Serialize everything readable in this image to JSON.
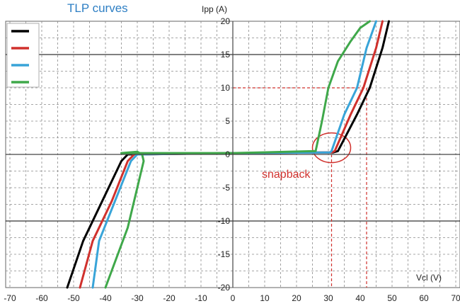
{
  "chart_data": {
    "type": "line",
    "title": "TLP curves",
    "xlabel": "Vcl (V)",
    "ylabel": "Ipp (A)",
    "xlim": [
      -70,
      70
    ],
    "ylim": [
      -20,
      20
    ],
    "x_ticks": [
      -70,
      -60,
      -50,
      -40,
      -30,
      -20,
      -10,
      0,
      10,
      20,
      30,
      40,
      50,
      60,
      70
    ],
    "y_ticks": [
      20,
      15,
      10,
      5,
      0,
      -5,
      -10,
      -15,
      -20
    ],
    "x_tick_labels": [
      "-70",
      "-60",
      "-50",
      "-40",
      "-30",
      "-20",
      "-10",
      "0",
      "10",
      "20",
      "30",
      "40",
      "50",
      "60",
      "70"
    ],
    "y_tick_labels": [
      "20",
      "15",
      "10",
      "5",
      "0",
      "-5",
      "-10",
      "-15",
      "-20"
    ],
    "grid": true,
    "legend": "top-left",
    "colors": {
      "title": "#2e7fc4",
      "grid_dashed": "#8a8a8a",
      "grid_major": "#000000",
      "annotation": "#d0312d"
    },
    "series": [
      {
        "color": "#000000",
        "x": [
          -52,
          -47,
          -41,
          -35,
          -33,
          -32,
          0,
          30,
          31.5,
          33,
          39,
          43,
          47,
          49
        ],
        "y": [
          -20,
          -13,
          -7,
          -1,
          0,
          0,
          0.2,
          0.3,
          0.3,
          0.5,
          6,
          10,
          16,
          20
        ]
      },
      {
        "color": "#d0312d",
        "x": [
          -48,
          -44,
          -38,
          -33,
          -31,
          -30,
          0,
          30,
          31,
          32,
          37,
          41,
          45,
          47
        ],
        "y": [
          -20,
          -13,
          -7,
          -1,
          0,
          0,
          0.2,
          0.3,
          0.3,
          0.5,
          6,
          10,
          16,
          20
        ]
      },
      {
        "color": "#38a4d8",
        "x": [
          -44,
          -42,
          -37,
          -32,
          -30,
          -29,
          0,
          30,
          30.5,
          31,
          35,
          39,
          42,
          45
        ],
        "y": [
          -20,
          -13,
          -7,
          -1,
          0,
          0,
          0.2,
          0.3,
          0.3,
          0.5,
          6,
          10,
          16,
          20
        ]
      },
      {
        "color": "#3fa84a",
        "x": [
          -40,
          -33,
          -29,
          -28,
          -28.5,
          -30,
          -35,
          0,
          26,
          28,
          30,
          33,
          37,
          40,
          43
        ],
        "y": [
          -20,
          -11,
          -3,
          -1,
          0,
          0.4,
          0.2,
          0.2,
          0.5,
          5,
          10,
          14,
          17,
          19,
          20
        ]
      }
    ],
    "annotations": [
      {
        "text": "snapback",
        "x": 25,
        "y": -2.5
      },
      {
        "type": "circle",
        "cx": 31,
        "cy": 1
      },
      {
        "type": "dashed-guide",
        "x": 31,
        "to_y": 0
      },
      {
        "type": "dashed-guide",
        "x": 42,
        "y": 10
      }
    ]
  }
}
